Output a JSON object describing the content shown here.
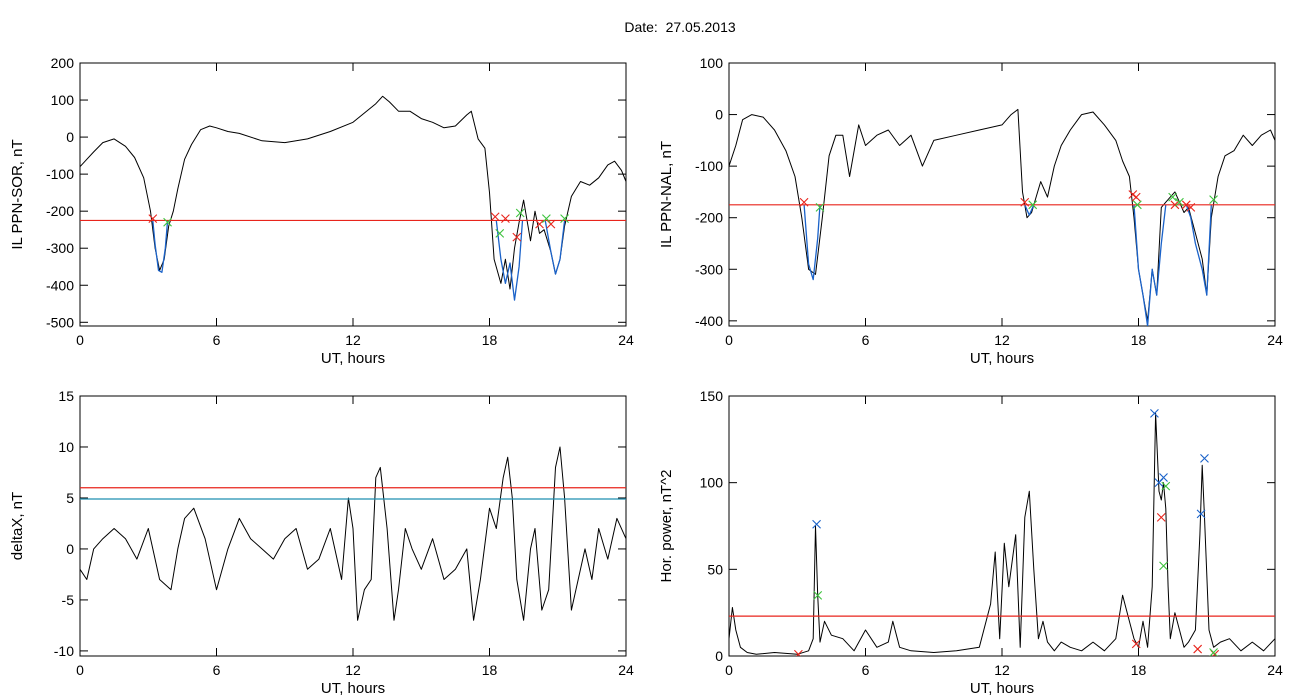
{
  "page_title": "Date:  27.05.2013",
  "colors": {
    "threshold": "#e8241c",
    "blue": "#1a62c9",
    "green": "#3cc23c",
    "axis": "#000000",
    "cyan_line": "#1e8fb0"
  },
  "chart_data": [
    {
      "type": "line",
      "xlabel": "UT, hours",
      "ylabel": "IL PPN-SOR, nT",
      "xlim": [
        0,
        24
      ],
      "ylim": [
        -510,
        200
      ],
      "xticks": [
        0,
        6,
        12,
        18,
        24
      ],
      "yticks": [
        -500,
        -400,
        -300,
        -200,
        -100,
        0,
        100,
        200
      ],
      "threshold": -225,
      "series": [
        {
          "color": "black",
          "x": [
            0,
            0.3,
            0.6,
            1,
            1.5,
            2,
            2.4,
            2.8,
            3.1,
            3.3,
            3.5,
            3.7,
            3.9,
            4.1,
            4.3,
            4.6,
            4.9,
            5.3,
            5.7,
            6,
            6.5,
            7,
            8,
            9,
            10,
            11,
            12,
            12.5,
            13,
            13.3,
            13.6,
            14,
            14.5,
            15,
            15.5,
            16,
            16.5,
            17,
            17.2,
            17.5,
            17.8,
            18,
            18.2,
            18.5,
            18.7,
            18.9,
            19.1,
            19.3,
            19.5,
            19.8,
            20,
            20.2,
            20.4,
            20.7,
            20.9,
            21.1,
            21.3,
            21.6,
            22,
            22.4,
            22.8,
            23.2,
            23.5,
            23.8,
            24
          ],
          "y": [
            -80,
            -60,
            -40,
            -15,
            -5,
            -25,
            -55,
            -110,
            -200,
            -300,
            -360,
            -330,
            -240,
            -200,
            -140,
            -60,
            -20,
            20,
            30,
            25,
            15,
            10,
            -10,
            -15,
            -5,
            15,
            40,
            65,
            90,
            110,
            95,
            70,
            70,
            50,
            40,
            25,
            30,
            60,
            70,
            -5,
            -30,
            -150,
            -330,
            -395,
            -330,
            -410,
            -300,
            -230,
            -170,
            -280,
            -200,
            -260,
            -250,
            -310,
            -370,
            -330,
            -240,
            -160,
            -120,
            -130,
            -110,
            -75,
            -65,
            -90,
            -120
          ]
        },
        {
          "color": "blue",
          "x": [
            3.2,
            3.3,
            3.45,
            3.6,
            3.75,
            3.85
          ],
          "y": [
            -225,
            -290,
            -360,
            -365,
            -300,
            -225
          ]
        },
        {
          "color": "blue",
          "x": [
            18.3,
            18.5,
            18.7,
            18.9,
            19.1,
            19.3,
            19.45
          ],
          "y": [
            -225,
            -330,
            -395,
            -340,
            -440,
            -350,
            -225
          ]
        },
        {
          "color": "blue",
          "x": [
            20.45,
            20.7,
            20.9,
            21.1,
            21.3
          ],
          "y": [
            -225,
            -310,
            -370,
            -330,
            -225
          ]
        }
      ],
      "markers_red": [
        [
          3.2,
          -220
        ],
        [
          18.25,
          -215
        ],
        [
          18.7,
          -220
        ],
        [
          19.2,
          -270
        ],
        [
          20.2,
          -235
        ],
        [
          20.7,
          -235
        ]
      ],
      "markers_green": [
        [
          3.85,
          -230
        ],
        [
          18.45,
          -260
        ],
        [
          19.35,
          -205
        ],
        [
          20.5,
          -220
        ],
        [
          21.3,
          -220
        ]
      ]
    },
    {
      "type": "line",
      "xlabel": "UT, hours",
      "ylabel": "IL PPN-NAL, nT",
      "xlim": [
        0,
        24
      ],
      "ylim": [
        -410,
        100
      ],
      "xticks": [
        0,
        6,
        12,
        18,
        24
      ],
      "yticks": [
        -400,
        -300,
        -200,
        -100,
        0,
        100
      ],
      "threshold": -175,
      "series": [
        {
          "color": "black",
          "x": [
            0,
            0.3,
            0.6,
            1,
            1.5,
            2,
            2.5,
            2.9,
            3.2,
            3.5,
            3.8,
            4.1,
            4.4,
            4.7,
            5,
            5.3,
            5.7,
            6,
            6.5,
            7,
            7.5,
            8,
            8.5,
            9,
            10,
            11,
            12,
            12.4,
            12.7,
            12.9,
            13.1,
            13.3,
            13.5,
            13.7,
            14,
            14.3,
            14.6,
            15,
            15.5,
            16,
            16.5,
            17,
            17.3,
            17.6,
            17.8,
            18,
            18.2,
            18.4,
            18.6,
            18.8,
            19,
            19.2,
            19.4,
            19.6,
            19.8,
            20,
            20.2,
            20.5,
            20.8,
            21,
            21.2,
            21.5,
            21.8,
            22.2,
            22.6,
            23,
            23.4,
            23.8,
            24
          ],
          "y": [
            -100,
            -60,
            -10,
            0,
            -5,
            -30,
            -70,
            -120,
            -200,
            -300,
            -310,
            -200,
            -80,
            -40,
            -40,
            -120,
            -20,
            -60,
            -40,
            -30,
            -60,
            -40,
            -100,
            -50,
            -40,
            -30,
            -20,
            0,
            10,
            -150,
            -200,
            -190,
            -160,
            -130,
            -160,
            -100,
            -60,
            -30,
            0,
            5,
            -20,
            -50,
            -90,
            -120,
            -200,
            -300,
            -350,
            -400,
            -300,
            -350,
            -180,
            -170,
            -160,
            -150,
            -170,
            -190,
            -180,
            -230,
            -280,
            -350,
            -200,
            -120,
            -80,
            -70,
            -40,
            -60,
            -40,
            -30,
            -50
          ]
        },
        {
          "color": "blue",
          "x": [
            3.3,
            3.5,
            3.7,
            3.9,
            4
          ],
          "y": [
            -175,
            -290,
            -320,
            -240,
            -175
          ]
        },
        {
          "color": "blue",
          "x": [
            13,
            13.2,
            13.4
          ],
          "y": [
            -175,
            -195,
            -175
          ]
        },
        {
          "color": "blue",
          "x": [
            17.8,
            18,
            18.2,
            18.4,
            18.6,
            18.8,
            19,
            19.2
          ],
          "y": [
            -175,
            -300,
            -350,
            -410,
            -300,
            -350,
            -250,
            -175
          ]
        },
        {
          "color": "blue",
          "x": [
            20.1,
            20.3,
            20.5,
            20.8,
            21,
            21.2
          ],
          "y": [
            -175,
            -200,
            -250,
            -300,
            -350,
            -175
          ]
        }
      ],
      "markers_red": [
        [
          3.3,
          -170
        ],
        [
          13,
          -170
        ],
        [
          17.75,
          -155
        ],
        [
          17.9,
          -160
        ],
        [
          19.6,
          -175
        ],
        [
          20.1,
          -175
        ],
        [
          20.3,
          -180
        ]
      ],
      "markers_green": [
        [
          4.0,
          -180
        ],
        [
          13.35,
          -175
        ],
        [
          17.95,
          -175
        ],
        [
          19.5,
          -160
        ],
        [
          19.8,
          -170
        ],
        [
          21.3,
          -165
        ]
      ]
    },
    {
      "type": "line",
      "xlabel": "UT, hours",
      "ylabel": "deltaX, nT",
      "xlim": [
        0,
        24
      ],
      "ylim": [
        -10.5,
        15
      ],
      "xticks": [
        0,
        6,
        12,
        18,
        24
      ],
      "yticks": [
        -10,
        -5,
        0,
        5,
        10,
        15
      ],
      "threshold": 6,
      "threshold2": 4.9,
      "series": [
        {
          "color": "black",
          "x": [
            0,
            0.3,
            0.6,
            1,
            1.5,
            2,
            2.5,
            3,
            3.5,
            4,
            4.3,
            4.6,
            5,
            5.5,
            6,
            6.5,
            7,
            7.5,
            8,
            8.5,
            9,
            9.5,
            10,
            10.5,
            11,
            11.5,
            11.8,
            12,
            12.2,
            12.5,
            12.8,
            13,
            13.2,
            13.5,
            13.8,
            14,
            14.3,
            14.6,
            15,
            15.5,
            16,
            16.5,
            17,
            17.3,
            17.6,
            18,
            18.3,
            18.6,
            18.8,
            19,
            19.2,
            19.5,
            19.8,
            20,
            20.3,
            20.6,
            20.9,
            21.1,
            21.3,
            21.6,
            21.9,
            22.2,
            22.5,
            22.8,
            23.2,
            23.6,
            24
          ],
          "y": [
            -2,
            -3,
            0,
            1,
            2,
            1,
            -1,
            2,
            -3,
            -4,
            0,
            3,
            4,
            1,
            -4,
            0,
            3,
            1,
            0,
            -1,
            1,
            2,
            -2,
            -1,
            2,
            -3,
            5,
            2,
            -7,
            -4,
            -3,
            7,
            8,
            2,
            -7,
            -4,
            2,
            0,
            -2,
            1,
            -3,
            -2,
            0,
            -7,
            -3,
            4,
            2,
            7,
            9,
            5,
            -3,
            -7,
            0,
            2,
            -6,
            -4,
            8,
            10,
            5,
            -6,
            -3,
            0,
            -3,
            2,
            -1,
            3,
            1
          ]
        }
      ]
    },
    {
      "type": "line",
      "xlabel": "UT, hours",
      "ylabel": "Hor. power, nT^2",
      "xlim": [
        0,
        24
      ],
      "ylim": [
        0,
        150
      ],
      "xticks": [
        0,
        6,
        12,
        18,
        24
      ],
      "yticks": [
        0,
        50,
        100,
        150
      ],
      "threshold": 23,
      "series": [
        {
          "color": "black",
          "x": [
            0,
            0.15,
            0.3,
            0.5,
            0.8,
            1.2,
            2,
            3,
            3.5,
            3.7,
            3.8,
            3.9,
            4.0,
            4.2,
            4.5,
            5,
            5.5,
            6,
            6.5,
            7,
            7.2,
            7.5,
            8,
            9,
            10,
            11,
            11.5,
            11.7,
            11.9,
            12.1,
            12.3,
            12.6,
            12.8,
            13,
            13.2,
            13.4,
            13.6,
            13.8,
            14,
            14.3,
            14.6,
            15,
            15.5,
            16,
            16.5,
            17,
            17.3,
            17.6,
            17.8,
            18,
            18.2,
            18.4,
            18.6,
            18.75,
            18.9,
            19,
            19.1,
            19.2,
            19.3,
            19.4,
            19.6,
            19.8,
            20,
            20.2,
            20.5,
            20.7,
            20.8,
            20.9,
            21.1,
            21.3,
            21.6,
            22,
            22.5,
            23,
            23.5,
            24
          ],
          "y": [
            10,
            28,
            15,
            5,
            2,
            1,
            2,
            1,
            3,
            10,
            75,
            35,
            8,
            20,
            12,
            10,
            3,
            15,
            5,
            8,
            20,
            5,
            3,
            2,
            3,
            5,
            30,
            60,
            10,
            65,
            40,
            70,
            5,
            80,
            95,
            50,
            10,
            20,
            8,
            3,
            8,
            5,
            3,
            8,
            3,
            10,
            35,
            20,
            10,
            5,
            20,
            5,
            40,
            140,
            95,
            90,
            100,
            85,
            40,
            10,
            25,
            15,
            5,
            8,
            15,
            70,
            110,
            80,
            15,
            5,
            8,
            10,
            3,
            8,
            3,
            10
          ]
        }
      ],
      "markers_blue": [
        [
          3.85,
          76
        ],
        [
          18.7,
          140
        ],
        [
          18.9,
          100
        ],
        [
          19.1,
          103
        ],
        [
          20.75,
          82
        ],
        [
          20.9,
          114
        ]
      ],
      "markers_red": [
        [
          3.05,
          1
        ],
        [
          17.9,
          7
        ],
        [
          19.0,
          80
        ],
        [
          20.6,
          4
        ],
        [
          21.35,
          1
        ]
      ],
      "markers_green": [
        [
          3.9,
          35
        ],
        [
          19.1,
          52
        ],
        [
          19.2,
          98
        ],
        [
          21.3,
          2
        ]
      ]
    }
  ]
}
